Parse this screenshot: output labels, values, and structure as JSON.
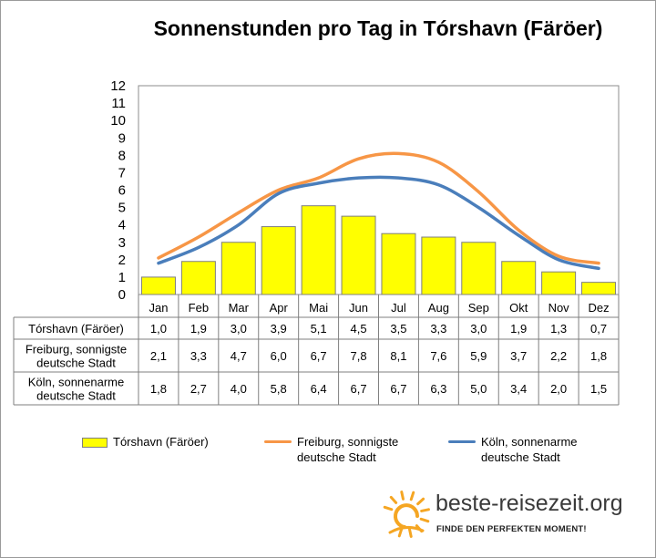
{
  "chart_data": {
    "type": "bar",
    "title": "Sonnenstunden pro Tag in Tórshavn (Färöer)",
    "categories": [
      "Jan",
      "Feb",
      "Mar",
      "Apr",
      "Mai",
      "Jun",
      "Jul",
      "Aug",
      "Sep",
      "Okt",
      "Nov",
      "Dez"
    ],
    "ylim": [
      0,
      12
    ],
    "yticks": [
      "0",
      "1",
      "2",
      "3",
      "4",
      "5",
      "6",
      "7",
      "8",
      "9",
      "10",
      "11",
      "12"
    ],
    "grid": false,
    "legend_position": "bottom",
    "series": [
      {
        "name": "Tórshavn (Färöer)",
        "table_label": [
          "Tórshavn (Färöer)"
        ],
        "legend_label": [
          "Tórshavn (Färöer)"
        ],
        "kind": "bar",
        "color": "#ffff00",
        "values": [
          1.0,
          1.9,
          3.0,
          3.9,
          5.1,
          4.5,
          3.5,
          3.3,
          3.0,
          1.9,
          1.3,
          0.7
        ],
        "labels": [
          "1,0",
          "1,9",
          "3,0",
          "3,9",
          "5,1",
          "4,5",
          "3,5",
          "3,3",
          "3,0",
          "1,9",
          "1,3",
          "0,7"
        ]
      },
      {
        "name": "Freiburg, sonnigste deutsche Stadt",
        "table_label": [
          "Freiburg, sonnigste",
          "deutsche Stadt"
        ],
        "legend_label": [
          "Freiburg, sonnigste",
          "deutsche Stadt"
        ],
        "kind": "line",
        "color": "#f79646",
        "values": [
          2.1,
          3.3,
          4.7,
          6.0,
          6.7,
          7.8,
          8.1,
          7.6,
          5.9,
          3.7,
          2.2,
          1.8
        ],
        "labels": [
          "2,1",
          "3,3",
          "4,7",
          "6,0",
          "6,7",
          "7,8",
          "8,1",
          "7,6",
          "5,9",
          "3,7",
          "2,2",
          "1,8"
        ]
      },
      {
        "name": "Köln, sonnenarme deutsche Stadt",
        "table_label": [
          "Köln, sonnenarme",
          "deutsche Stadt"
        ],
        "legend_label": [
          "Köln, sonnenarme",
          "deutsche Stadt"
        ],
        "kind": "line",
        "color": "#4a7ebb",
        "values": [
          1.8,
          2.7,
          4.0,
          5.8,
          6.4,
          6.7,
          6.7,
          6.3,
          5.0,
          3.4,
          2.0,
          1.5
        ],
        "labels": [
          "1,8",
          "2,7",
          "4,0",
          "5,8",
          "6,4",
          "6,7",
          "6,7",
          "6,3",
          "5,0",
          "3,4",
          "2,0",
          "1,5"
        ]
      }
    ]
  },
  "branding": {
    "site": "beste-reisezeit.org",
    "tagline": "FINDE DEN PERFEKTEN MOMENT!",
    "logo_icon": "sun-icon",
    "logo_color": "#f5a623"
  }
}
